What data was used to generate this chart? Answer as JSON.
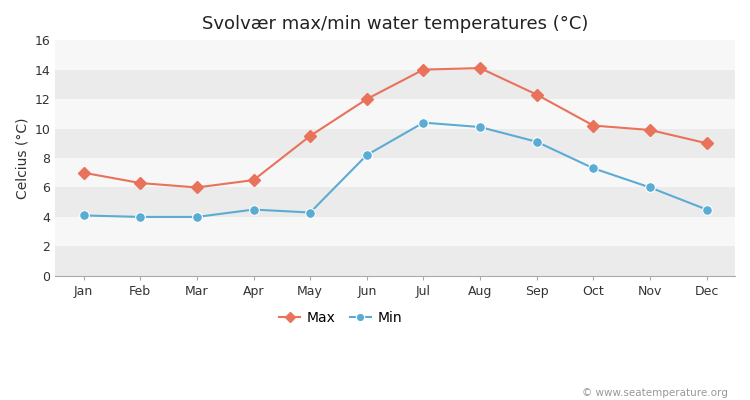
{
  "title": "Svolvær max/min water temperatures (°C)",
  "months": [
    "Jan",
    "Feb",
    "Mar",
    "Apr",
    "May",
    "Jun",
    "Jul",
    "Aug",
    "Sep",
    "Oct",
    "Nov",
    "Dec"
  ],
  "max_values": [
    7.0,
    6.3,
    6.0,
    6.5,
    9.5,
    12.0,
    14.0,
    14.1,
    12.3,
    10.2,
    9.9,
    9.0
  ],
  "min_values": [
    4.1,
    4.0,
    4.0,
    4.5,
    4.3,
    8.2,
    10.4,
    10.1,
    9.1,
    7.3,
    6.0,
    4.5
  ],
  "max_color": "#e8725a",
  "min_color": "#5bacd4",
  "background_color": "#ffffff",
  "band_color_light": "#ebebeb",
  "band_color_white": "#f7f7f7",
  "ylabel": "Celcius (°C)",
  "ylim": [
    0,
    16
  ],
  "yticks": [
    0,
    2,
    4,
    6,
    8,
    10,
    12,
    14,
    16
  ],
  "legend_max": "Max",
  "legend_min": "Min",
  "watermark": "© www.seatemperature.org",
  "title_fontsize": 13,
  "label_fontsize": 10,
  "tick_fontsize": 9,
  "watermark_fontsize": 7.5
}
